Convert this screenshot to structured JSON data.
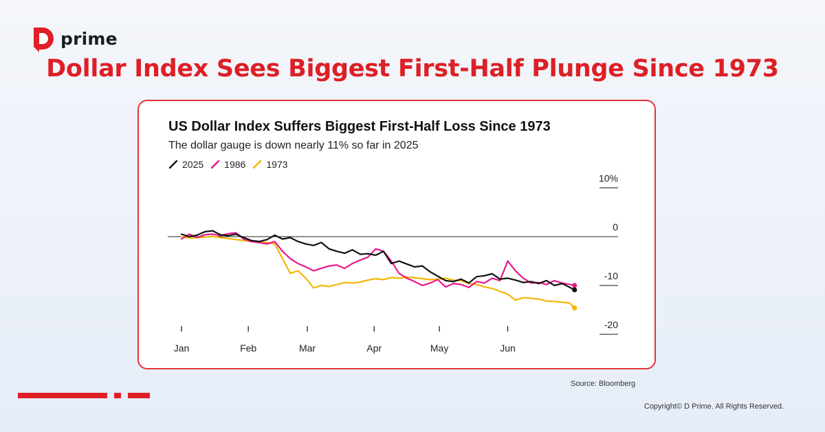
{
  "brand": {
    "logo_text": "prime",
    "accent": "#e02026"
  },
  "headline": "Dollar Index Sees Biggest First-Half Plunge Since 1973",
  "chart_data": {
    "type": "line",
    "title": "US Dollar Index Suffers Biggest First-Half Loss Since 1973",
    "subtitle": "The dollar gauge is down nearly 11% so far in 2025",
    "x_unit": "trading week",
    "x_ticks": [
      {
        "label": "Jan",
        "x": 0
      },
      {
        "label": "Feb",
        "x": 4.3
      },
      {
        "label": "Mar",
        "x": 8.1
      },
      {
        "label": "Apr",
        "x": 12.4
      },
      {
        "label": "May",
        "x": 16.6
      },
      {
        "label": "Jun",
        "x": 21.0
      }
    ],
    "y_ticks": [
      {
        "value": 10,
        "label": "10%"
      },
      {
        "value": 0,
        "label": "0"
      },
      {
        "value": -10,
        "label": "-10"
      },
      {
        "value": -20,
        "label": "-20"
      }
    ],
    "ylim": [
      -20,
      10
    ],
    "xlim": [
      0,
      25.8
    ],
    "zero_line": true,
    "legend_position": "top-left",
    "series": [
      {
        "name": "2025",
        "color": "#111111",
        "x": [
          0,
          0.5,
          1,
          1.5,
          2,
          2.5,
          3,
          3.5,
          4,
          4.5,
          5,
          5.5,
          6,
          6.5,
          7,
          7.5,
          8,
          8.5,
          9,
          9.5,
          10,
          10.5,
          11,
          11.5,
          12,
          12.5,
          13,
          13.5,
          14,
          14.5,
          15,
          15.5,
          16,
          16.5,
          17,
          17.5,
          18,
          18.5,
          19,
          19.5,
          20,
          20.5,
          21,
          21.5,
          22,
          22.5,
          23,
          23.5,
          24,
          24.5,
          25,
          25.3
        ],
        "y": [
          0.5,
          0,
          0.3,
          1,
          1.2,
          0.4,
          0.2,
          0.5,
          -0.2,
          -0.8,
          -1.0,
          -0.6,
          0.3,
          -0.5,
          -0.2,
          -1.0,
          -1.5,
          -1.8,
          -1.2,
          -2.5,
          -3.0,
          -3.4,
          -2.7,
          -3.6,
          -3.5,
          -3.8,
          -3.0,
          -5.5,
          -5.0,
          -5.6,
          -6.2,
          -6.0,
          -7.2,
          -8.1,
          -9.0,
          -9.2,
          -8.7,
          -9.5,
          -8.2,
          -8.0,
          -7.6,
          -8.7,
          -8.5,
          -8.9,
          -9.4,
          -9.2,
          -9.6,
          -9.0,
          -10.0,
          -9.6,
          -10.4,
          -10.9
        ]
      },
      {
        "name": "1986",
        "color": "#e8178a",
        "x": [
          0,
          0.5,
          1,
          1.5,
          2,
          2.5,
          3,
          3.5,
          4,
          4.5,
          5,
          5.5,
          6,
          6.5,
          7,
          7.5,
          8,
          8.5,
          9,
          9.5,
          10,
          10.5,
          11,
          11.5,
          12,
          12.5,
          13,
          13.5,
          14,
          14.5,
          15,
          15.5,
          16,
          16.5,
          17,
          17.5,
          18,
          18.5,
          19,
          19.5,
          20,
          20.5,
          21,
          21.5,
          22,
          22.5,
          23,
          23.5,
          24,
          24.5,
          25,
          25.3
        ],
        "y": [
          -0.5,
          0.5,
          -0.2,
          0.4,
          0.5,
          0.2,
          0.6,
          0.8,
          -0.5,
          -1.0,
          -1.2,
          -1.5,
          -1.0,
          -3.0,
          -4.5,
          -5.5,
          -6.2,
          -7.0,
          -6.5,
          -6.0,
          -5.8,
          -6.5,
          -5.5,
          -4.8,
          -4.2,
          -2.5,
          -3.0,
          -5.0,
          -7.5,
          -8.5,
          -9.2,
          -10.0,
          -9.5,
          -8.8,
          -10.3,
          -9.6,
          -9.8,
          -10.4,
          -9.2,
          -9.5,
          -8.5,
          -9.0,
          -5.0,
          -7.0,
          -8.5,
          -9.5,
          -9.4,
          -9.8,
          -9.0,
          -9.5,
          -9.8,
          -10.0
        ]
      },
      {
        "name": "1973",
        "color": "#f2b705",
        "x": [
          0,
          0.5,
          1,
          1.5,
          2,
          2.5,
          3,
          3.5,
          4,
          4.5,
          5,
          5.5,
          6,
          6.5,
          7,
          7.5,
          8,
          8.5,
          9,
          9.5,
          10,
          10.5,
          11,
          11.5,
          12,
          12.5,
          13,
          13.5,
          14,
          14.5,
          15,
          15.5,
          16,
          16.5,
          17,
          17.5,
          18,
          18.5,
          19,
          19.5,
          20,
          20.5,
          21,
          21.5,
          22,
          22.5,
          23,
          23.5,
          24,
          24.5,
          25,
          25.3
        ],
        "y": [
          0,
          -0.3,
          -0.2,
          -0.1,
          0,
          -0.2,
          -0.4,
          -0.6,
          -0.8,
          -1.0,
          -1.0,
          -1.2,
          -1.5,
          -4.5,
          -7.5,
          -7.0,
          -8.5,
          -10.5,
          -10.0,
          -10.2,
          -9.8,
          -9.4,
          -9.5,
          -9.3,
          -8.9,
          -8.6,
          -8.8,
          -8.4,
          -8.5,
          -8.3,
          -8.4,
          -8.6,
          -8.8,
          -8.7,
          -8.5,
          -8.9,
          -9.0,
          -9.6,
          -9.8,
          -10.3,
          -10.6,
          -11.2,
          -11.8,
          -13.0,
          -12.5,
          -12.6,
          -12.8,
          -13.2,
          -13.3,
          -13.4,
          -13.6,
          -14.6
        ]
      }
    ]
  },
  "source_text": "Source: Bloomberg",
  "copyright_text": "Copyright© D Prime. All Rights Reserved."
}
